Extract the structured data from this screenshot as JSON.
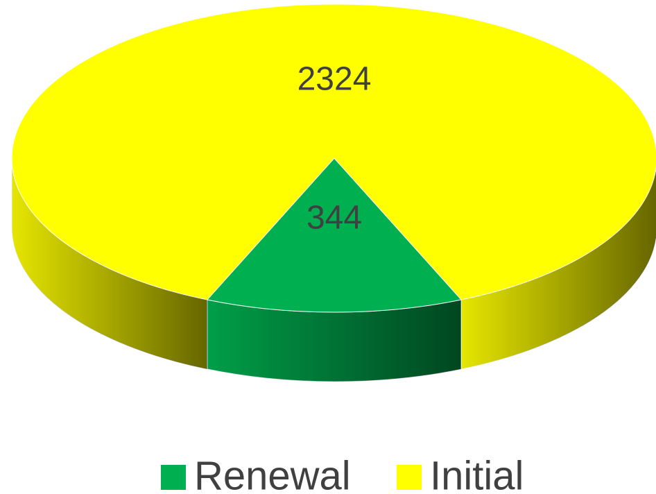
{
  "chart_data": {
    "type": "pie",
    "categories": [
      "Renewal",
      "Initial"
    ],
    "values": [
      344,
      2324
    ],
    "colors": [
      "#00b050",
      "#ffff00"
    ]
  }
}
